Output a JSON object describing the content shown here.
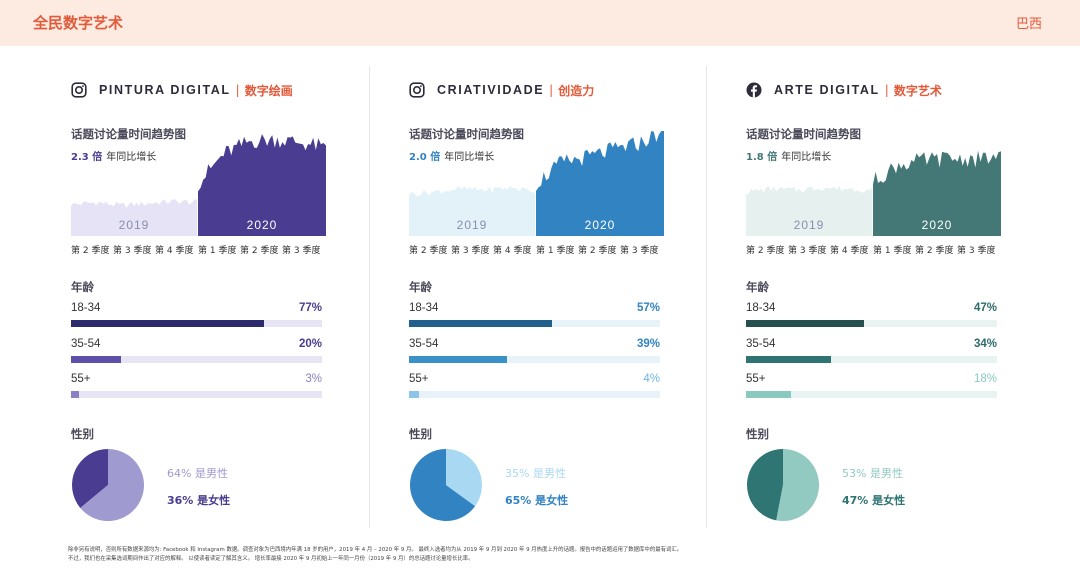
{
  "header": {
    "title": "全民数字艺术",
    "country": "巴西"
  },
  "labels": {
    "trend": "话题讨论量时间趋势图",
    "growth_suffix": "年同比增长",
    "age": "年龄",
    "gender": "性别"
  },
  "quarters": [
    "第 2 季度",
    "第 3 季度",
    "第 4 季度",
    "第 1 季度",
    "第 2 季度",
    "第 3 季度"
  ],
  "years": [
    "2019",
    "2020"
  ],
  "columns": [
    {
      "icon": "instagram-icon",
      "title_pt": "PINTURA DIGITAL",
      "separator": "|",
      "title_cn": "数字绘画",
      "growth": "2.3 倍",
      "colors": {
        "light": "#e5e3f5",
        "dark": "#4a3c91",
        "growth": "#4a3c91"
      },
      "ages": [
        {
          "label": "18-34",
          "pct": "77%",
          "value": 0.77,
          "fill": "#2e2a6e",
          "track": "#e7e5f3",
          "pct_color": "#4a3c91"
        },
        {
          "label": "35-54",
          "pct": "20%",
          "value": 0.2,
          "fill": "#5e4fa8",
          "track": "#e7e5f3",
          "pct_color": "#4a3c91"
        },
        {
          "label": "55+",
          "pct": "3%",
          "value": 0.03,
          "fill": "#8a80c4",
          "track": "#e7e5f3",
          "pct_color": "#8a80c4"
        }
      ],
      "gender": {
        "male_text": "64% 是男性",
        "female_text": "36% 是女性",
        "male": 0.64,
        "female": 0.36,
        "male_color": "#9f9ad0",
        "female_color": "#4a3c91",
        "male_text_color": "#9f9ad0",
        "female_text_color": "#4a3c91"
      }
    },
    {
      "icon": "instagram-icon",
      "title_pt": "CRIATIVIDADE",
      "separator": "|",
      "title_cn": "创造力",
      "growth": "2.0 倍",
      "colors": {
        "light": "#e3f1f8",
        "dark": "#3283c2",
        "growth": "#3283c2"
      },
      "ages": [
        {
          "label": "18-34",
          "pct": "57%",
          "value": 0.57,
          "fill": "#235f8c",
          "track": "#e8f3f9",
          "pct_color": "#3283c2"
        },
        {
          "label": "35-54",
          "pct": "39%",
          "value": 0.39,
          "fill": "#3a90c9",
          "track": "#e8f3f9",
          "pct_color": "#3283c2"
        },
        {
          "label": "55+",
          "pct": "4%",
          "value": 0.04,
          "fill": "#8cc5e8",
          "track": "#e8f3f9",
          "pct_color": "#6fb3df"
        }
      ],
      "gender": {
        "male_text": "35% 是男性",
        "female_text": "65% 是女性",
        "male": 0.35,
        "female": 0.65,
        "male_color": "#a9d8f3",
        "female_color": "#3283c2",
        "male_text_color": "#a9d8f3",
        "female_text_color": "#3283c2"
      }
    },
    {
      "icon": "facebook-icon",
      "title_pt": "ARTE DIGITAL",
      "separator": "|",
      "title_cn": "数字艺术",
      "growth": "1.8 倍",
      "colors": {
        "light": "#e5f0ef",
        "dark": "#437877",
        "growth": "#437877"
      },
      "ages": [
        {
          "label": "18-34",
          "pct": "47%",
          "value": 0.47,
          "fill": "#25504e",
          "track": "#e8f3f2",
          "pct_color": "#2d6b69"
        },
        {
          "label": "35-54",
          "pct": "34%",
          "value": 0.34,
          "fill": "#2f7472",
          "track": "#e8f3f2",
          "pct_color": "#2d6b69"
        },
        {
          "label": "55+",
          "pct": "18%",
          "value": 0.18,
          "fill": "#89c9c0",
          "track": "#e8f3f2",
          "pct_color": "#89c9c0"
        }
      ],
      "gender": {
        "male_text": "53% 是男性",
        "female_text": "47% 是女性",
        "male": 0.53,
        "female": 0.47,
        "male_color": "#92c9c1",
        "female_color": "#2e7573",
        "male_text_color": "#92c9c1",
        "female_text_color": "#2e7573"
      }
    }
  ],
  "chart_data": [
    {
      "type": "area",
      "title": "话题讨论量时间趋势图",
      "categories": [
        "第 2 季度",
        "第 3 季度",
        "第 4 季度",
        "第 1 季度",
        "第 2 季度",
        "第 3 季度"
      ],
      "series": [
        {
          "name": "2019",
          "values": [
            0.3,
            0.32,
            0.29,
            0.31,
            0.33,
            0.32
          ]
        },
        {
          "name": "2020",
          "values": [
            0.5,
            0.78,
            0.9,
            0.92,
            0.89,
            0.84
          ]
        }
      ]
    },
    {
      "type": "area",
      "title": "话题讨论量时间趋势图",
      "categories": [
        "第 2 季度",
        "第 3 季度",
        "第 4 季度",
        "第 1 季度",
        "第 2 季度",
        "第 3 季度"
      ],
      "series": [
        {
          "name": "2019",
          "values": [
            0.4,
            0.42,
            0.45,
            0.44,
            0.46,
            0.43
          ]
        },
        {
          "name": "2020",
          "values": [
            0.5,
            0.7,
            0.75,
            0.82,
            0.88,
            1.0
          ]
        }
      ]
    },
    {
      "type": "area",
      "title": "话题讨论量时间趋势图",
      "categories": [
        "第 2 季度",
        "第 3 季度",
        "第 4 季度",
        "第 1 季度",
        "第 2 季度",
        "第 3 季度"
      ],
      "series": [
        {
          "name": "2019",
          "values": [
            0.42,
            0.45,
            0.44,
            0.46,
            0.45,
            0.44
          ]
        },
        {
          "name": "2020",
          "values": [
            0.52,
            0.68,
            0.72,
            0.74,
            0.73,
            0.75
          ]
        }
      ]
    },
    {
      "type": "bar",
      "title": "年龄",
      "categories": [
        "18-34",
        "35-54",
        "55+"
      ],
      "series": [
        {
          "name": "PINTURA DIGITAL",
          "values": [
            77,
            20,
            3
          ]
        },
        {
          "name": "CRIATIVIDADE",
          "values": [
            57,
            39,
            4
          ]
        },
        {
          "name": "ARTE DIGITAL",
          "values": [
            47,
            34,
            18
          ]
        }
      ]
    },
    {
      "type": "pie",
      "title": "性别",
      "categories": [
        "男性",
        "女性"
      ],
      "series": [
        {
          "name": "PINTURA DIGITAL",
          "values": [
            64,
            36
          ]
        },
        {
          "name": "CRIATIVIDADE",
          "values": [
            35,
            65
          ]
        },
        {
          "name": "ARTE DIGITAL",
          "values": [
            53,
            47
          ]
        }
      ]
    }
  ],
  "footer": {
    "line1": "除非另有说明，否则所有数据来源均为: Facebook 和 Instagram 数据。调查对象为巴西境内年满 18 岁的用户，2019 年 4 月 – 2020 年 9 月。 最终入选者均为从 2019 年 9 月到 2020 年 9 月热度上升的话题。报告中的话题运用了数据库中的最有词汇。",
    "line2": "不过，我们也在采集选词期间作出了对应的解释。 以使读者读定了解其含义。 增长率最接 2020 年 9 月初始上一年同一月份（2019 年 9 月）的总话题讨论量增长比率。"
  }
}
